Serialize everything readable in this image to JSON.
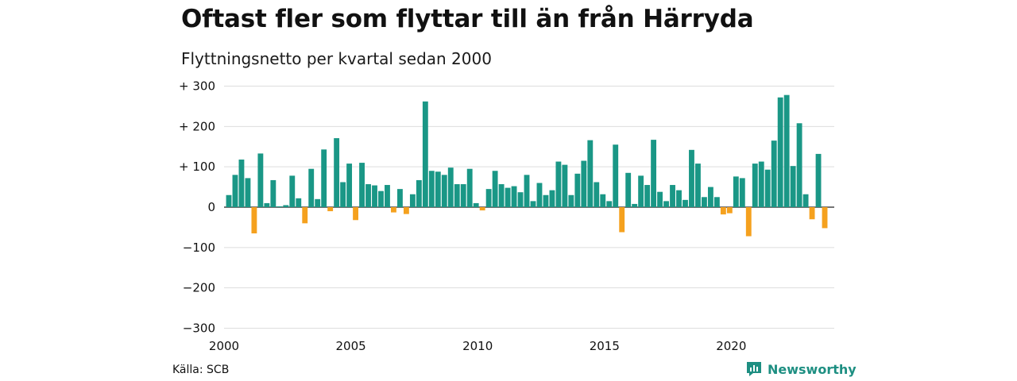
{
  "title": "Oftast fler som flyttar till än från Härryda",
  "subtitle": "Flyttningsnetto per kvartal sedan 2000",
  "source": "Källa: SCB",
  "brand": "Newsworthy",
  "colors": {
    "positive": "#1a9786",
    "negative": "#f5a11e",
    "grid": "#dddddd",
    "brand": "#1e8f82"
  },
  "chart_data": {
    "type": "bar",
    "title": "Oftast fler som flyttar till än från Härryda",
    "subtitle": "Flyttningsnetto per kvartal sedan 2000",
    "xlabel": "",
    "ylabel": "",
    "ylim": [
      -300,
      300
    ],
    "y_ticks": [
      300,
      200,
      100,
      0,
      -100,
      -200,
      -300
    ],
    "y_tick_labels": [
      "+ 300",
      "+ 200",
      "+ 100",
      "0",
      "−100",
      "−200",
      "−300"
    ],
    "x_tick_labels": [
      "2000",
      "2005",
      "2010",
      "2015",
      "2020"
    ],
    "grid": true,
    "categories": [
      "2000K1",
      "2000K2",
      "2000K3",
      "2000K4",
      "2001K1",
      "2001K2",
      "2001K3",
      "2001K4",
      "2002K1",
      "2002K2",
      "2002K3",
      "2002K4",
      "2003K1",
      "2003K2",
      "2003K3",
      "2003K4",
      "2004K1",
      "2004K2",
      "2004K3",
      "2004K4",
      "2005K1",
      "2005K2",
      "2005K3",
      "2005K4",
      "2006K1",
      "2006K2",
      "2006K3",
      "2006K4",
      "2007K1",
      "2007K2",
      "2007K3",
      "2007K4",
      "2008K1",
      "2008K2",
      "2008K3",
      "2008K4",
      "2009K1",
      "2009K2",
      "2009K3",
      "2009K4",
      "2010K1",
      "2010K2",
      "2010K3",
      "2010K4",
      "2011K1",
      "2011K2",
      "2011K3",
      "2011K4",
      "2012K1",
      "2012K2",
      "2012K3",
      "2012K4",
      "2013K1",
      "2013K2",
      "2013K3",
      "2013K4",
      "2014K1",
      "2014K2",
      "2014K3",
      "2014K4",
      "2015K1",
      "2015K2",
      "2015K3",
      "2015K4",
      "2016K1",
      "2016K2",
      "2016K3",
      "2016K4",
      "2017K1",
      "2017K2",
      "2017K3",
      "2017K4",
      "2018K1",
      "2018K2",
      "2018K3",
      "2018K4",
      "2019K1",
      "2019K2",
      "2019K3",
      "2019K4",
      "2020K1",
      "2020K2",
      "2020K3",
      "2020K4",
      "2021K1",
      "2021K2",
      "2021K3",
      "2021K4",
      "2022K1",
      "2022K2",
      "2022K3",
      "2022K4",
      "2023K1",
      "2023K2",
      "2023K3",
      "2023K4"
    ],
    "values": [
      30,
      80,
      118,
      72,
      -65,
      133,
      10,
      67,
      2,
      5,
      78,
      22,
      -40,
      95,
      20,
      143,
      -10,
      171,
      62,
      108,
      -32,
      110,
      57,
      54,
      40,
      55,
      -13,
      45,
      -17,
      32,
      67,
      262,
      90,
      88,
      80,
      98,
      57,
      57,
      95,
      10,
      -8,
      45,
      90,
      57,
      48,
      52,
      37,
      80,
      15,
      60,
      30,
      42,
      113,
      105,
      30,
      83,
      115,
      166,
      62,
      32,
      15,
      155,
      -62,
      85,
      8,
      78,
      55,
      167,
      38,
      15,
      55,
      42,
      18,
      142,
      108,
      25,
      50,
      25,
      -18,
      -15,
      76,
      72,
      -72,
      108,
      113,
      93,
      165,
      272,
      278,
      102,
      208,
      32,
      -30,
      132,
      -52,
      0
    ]
  }
}
